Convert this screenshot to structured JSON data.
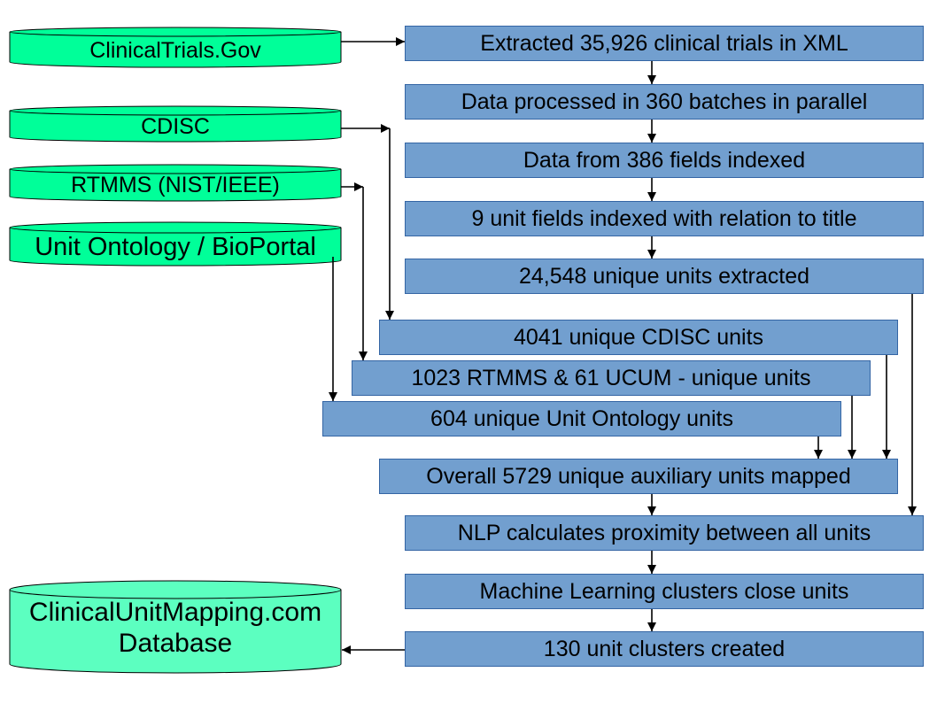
{
  "sources": {
    "clinicaltrials": "ClinicalTrials.Gov",
    "cdisc": "CDISC",
    "rtmms": "RTMMS (NIST/IEEE)",
    "unit_ontology": "Unit Ontology / BioPortal",
    "output_db_line1": "ClinicalUnitMapping.com",
    "output_db_line2": "Database"
  },
  "steps": {
    "s1": "Extracted 35,926 clinical trials in XML",
    "s2": "Data processed in 360 batches in parallel",
    "s3": "Data from 386 fields indexed",
    "s4": "9 unit fields indexed with relation to title",
    "s5": "24,548 unique units extracted",
    "s6": "4041 unique CDISC units",
    "s7": "1023 RTMMS & 61 UCUM - unique units",
    "s8": "604 unique Unit Ontology units",
    "s9": "Overall 5729 unique auxiliary units mapped",
    "s10": "NLP calculates proximity between all units",
    "s11": "Machine Learning clusters close units",
    "s12": "130 unit clusters created"
  },
  "colors": {
    "box_fill": "#729fcf",
    "box_border": "#3465a4",
    "source_fill": "#00ff99",
    "db_fill": "#5cffc0",
    "arrow": "#000000"
  }
}
